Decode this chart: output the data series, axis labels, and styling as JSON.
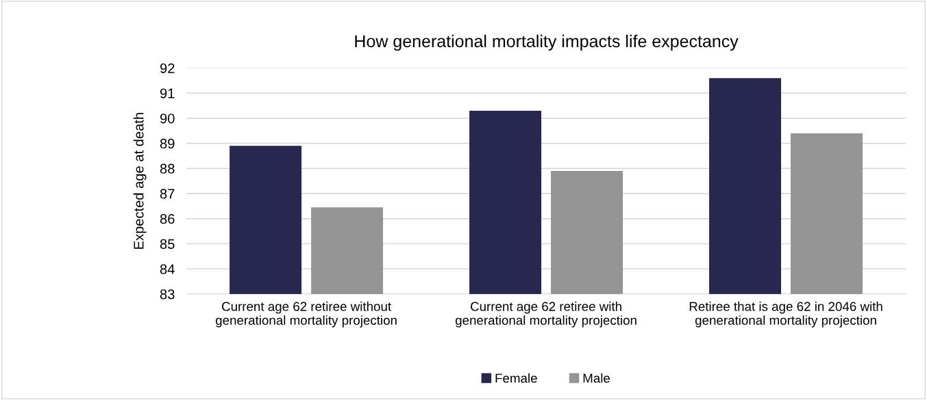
{
  "chart_data": {
    "type": "bar",
    "title": "How generational mortality impacts life expectancy",
    "ylabel": "Expected age at death",
    "categories": [
      "Current age 62 retiree without\ngenerational mortality projection",
      "Current age 62 retiree with\ngenerational mortality projection",
      "Retiree that is age 62 in 2046 with\ngenerational mortality projection"
    ],
    "series": [
      {
        "name": "Female",
        "color": "#28284e",
        "values": [
          88.9,
          90.3,
          91.6
        ]
      },
      {
        "name": "Male",
        "color": "#949494",
        "values": [
          86.45,
          87.9,
          89.4
        ]
      }
    ],
    "ylim": [
      83,
      92
    ],
    "yticks": [
      83,
      84,
      85,
      86,
      87,
      88,
      89,
      90,
      91,
      92
    ],
    "grid": "y",
    "legend": "bottom"
  }
}
